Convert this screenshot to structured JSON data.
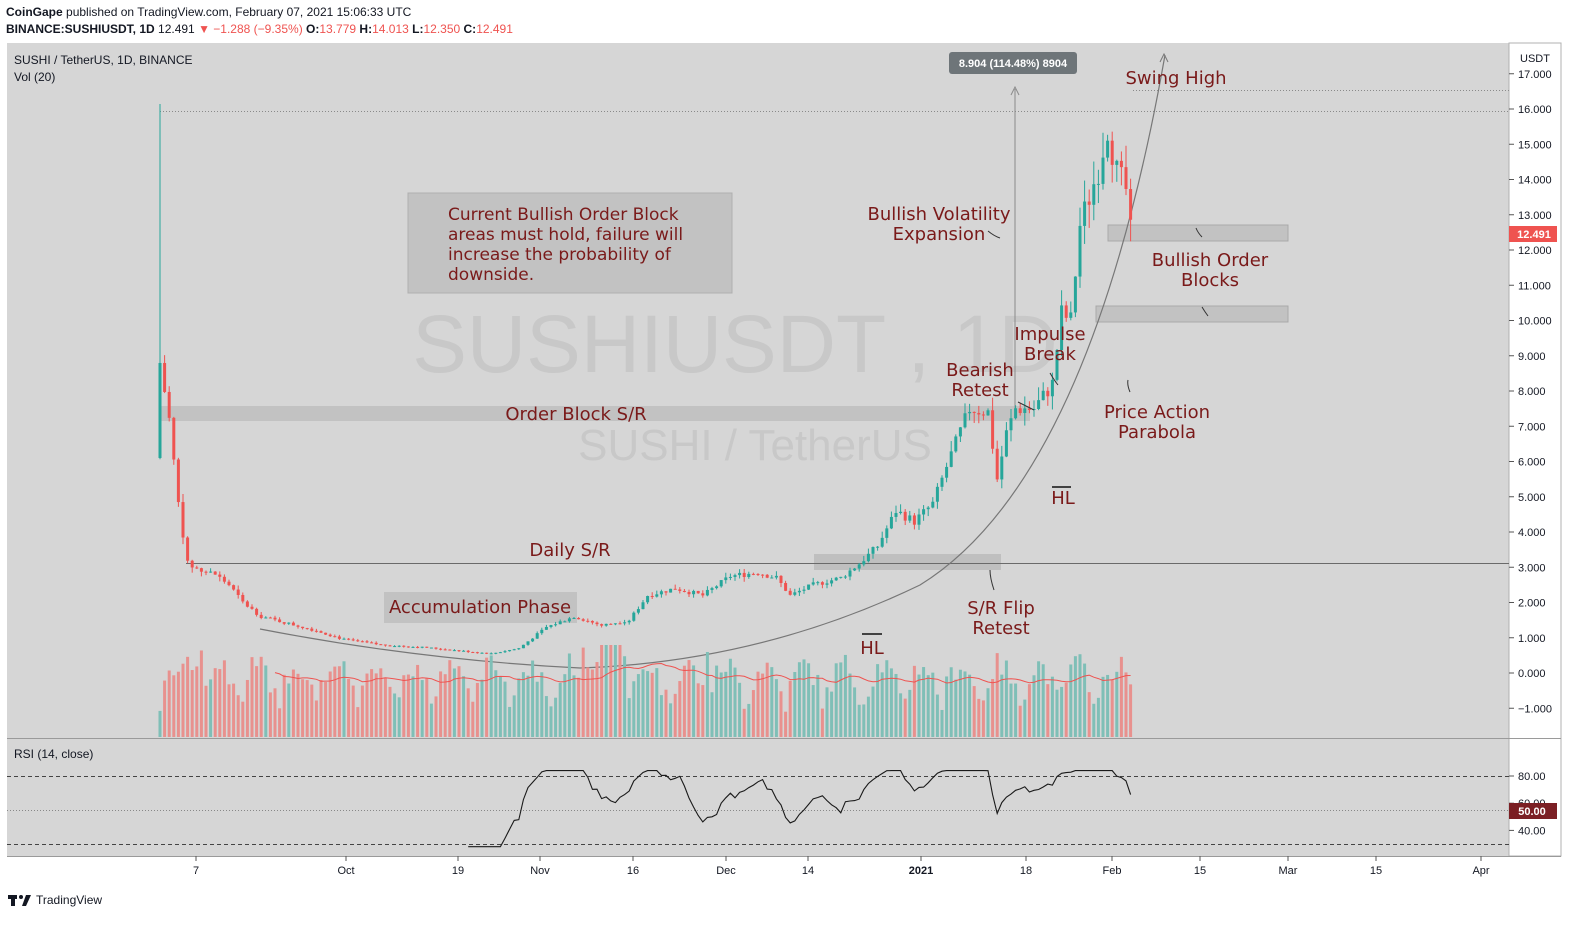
{
  "header": {
    "publisher": "CoinGape",
    "published_text": "published on TradingView.com, February 07, 2021 15:06:33 UTC",
    "ticker": "BINANCE:SUSHIUSDT, 1D",
    "last": "12.491",
    "change": "▼ −1.288 (−9.35%)",
    "o_label": "O:",
    "o_val": "13.779",
    "h_label": "H:",
    "h_val": "14.013",
    "l_label": "L:",
    "l_val": "12.350",
    "c_label": "C:",
    "c_val": "12.491"
  },
  "pane": {
    "symbol": "SUSHI / TetherUS, 1D, BINANCE",
    "vol_label": "Vol (20)",
    "currency": "USDT",
    "watermark": "SUSHIUSDT , 1D",
    "watermark2": "SUSHI / TetherUS",
    "price_tag": "12.491",
    "rsi_label": "RSI (14, close)",
    "rsi_tag": "50.00"
  },
  "colors": {
    "up": "#26a69a",
    "down": "#ef5350",
    "bg": "#d6d6d6",
    "annot": "#7a1a1a",
    "vol_up": "#7fbfb7",
    "vol_down": "#e8918e"
  },
  "annotations": {
    "swing_high": "Swing High",
    "measure": "8.904 (114.48%) 8904",
    "note": "Current Bullish Order Block areas must hold, failure will increase the probability of downside.",
    "bullish_vol": "Bullish Volatility Expansion",
    "bull_ob": "Bullish Order Blocks",
    "impulse": "Impulse Break",
    "bear_retest": "Bearish Retest",
    "order_block_sr": "Order Block S/R",
    "price_action": "Price Action Parabola",
    "hl1": "HL",
    "hl2": "HL",
    "daily_sr": "Daily S/R",
    "accum": "Accumulation Phase",
    "sr_flip": "S/R Flip Retest"
  },
  "footer": {
    "brand": "TradingView"
  },
  "chart_data": {
    "type": "line",
    "price_axis": {
      "ticks": [
        "17.000",
        "16.000",
        "15.000",
        "14.000",
        "13.000",
        "12.000",
        "11.000",
        "10.000",
        "9.000",
        "8.000",
        "7.000",
        "6.000",
        "5.000",
        "4.000",
        "3.000",
        "2.000",
        "1.000",
        "0.000",
        "−1.000"
      ]
    },
    "rsi_axis": {
      "ticks": [
        "80.00",
        "60.00",
        "40.00"
      ]
    },
    "x_ticks": [
      "7",
      "Oct",
      "19",
      "Nov",
      "16",
      "Dec",
      "14",
      "2021",
      "18",
      "Feb",
      "15",
      "Mar",
      "15",
      "Apr"
    ],
    "levels": {
      "swing_high": 16.55,
      "prev_high": 15.95,
      "order_block_sr": 7.25,
      "daily_sr": 3.15
    },
    "close_anchors": [
      [
        0,
        8.8
      ],
      [
        2,
        7.2
      ],
      [
        4,
        4.8
      ],
      [
        6,
        3.1
      ],
      [
        9,
        2.9
      ],
      [
        12,
        2.8
      ],
      [
        15,
        2.5
      ],
      [
        18,
        2.0
      ],
      [
        22,
        1.6
      ],
      [
        28,
        1.4
      ],
      [
        34,
        1.2
      ],
      [
        40,
        0.95
      ],
      [
        48,
        0.8
      ],
      [
        58,
        0.72
      ],
      [
        66,
        0.62
      ],
      [
        72,
        0.55
      ],
      [
        78,
        0.7
      ],
      [
        84,
        1.3
      ],
      [
        90,
        1.6
      ],
      [
        96,
        1.35
      ],
      [
        102,
        1.5
      ],
      [
        106,
        2.2
      ],
      [
        112,
        2.4
      ],
      [
        118,
        2.2
      ],
      [
        124,
        2.75
      ],
      [
        130,
        2.85
      ],
      [
        134,
        2.7
      ],
      [
        137,
        2.2
      ],
      [
        142,
        2.5
      ],
      [
        148,
        2.7
      ],
      [
        152,
        3.1
      ],
      [
        156,
        3.6
      ],
      [
        160,
        4.6
      ],
      [
        164,
        4.3
      ],
      [
        168,
        4.8
      ],
      [
        172,
        6.2
      ],
      [
        176,
        7.5
      ],
      [
        180,
        7.4
      ],
      [
        182,
        5.5
      ],
      [
        184,
        6.8
      ],
      [
        186,
        7.5
      ],
      [
        190,
        7.5
      ],
      [
        194,
        8.2
      ],
      [
        196,
        10.2
      ],
      [
        198,
        10.0
      ],
      [
        200,
        12.7
      ],
      [
        204,
        14.3
      ],
      [
        206,
        15.5
      ],
      [
        208,
        14.2
      ],
      [
        210,
        13.7
      ],
      [
        211,
        12.49
      ]
    ]
  }
}
